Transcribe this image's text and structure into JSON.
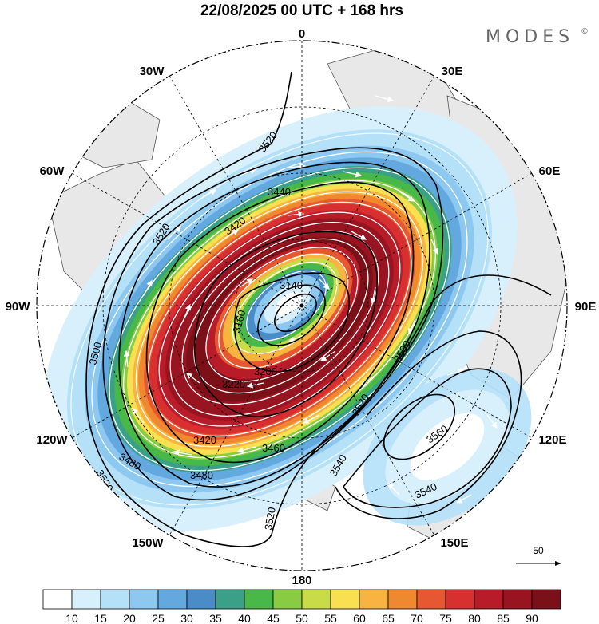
{
  "title": "22/08/2025  00 UTC  + 168 hrs",
  "brand": "MODES",
  "brand_mark": "©",
  "longitude_labels": [
    {
      "id": "0",
      "label": "0"
    },
    {
      "id": "30e",
      "label": "30E"
    },
    {
      "id": "60e",
      "label": "60E"
    },
    {
      "id": "90e",
      "label": "90E"
    },
    {
      "id": "120e",
      "label": "120E"
    },
    {
      "id": "150e",
      "label": "150E"
    },
    {
      "id": "180",
      "label": "180"
    },
    {
      "id": "150w",
      "label": "150W"
    },
    {
      "id": "120w",
      "label": "120W"
    },
    {
      "id": "90w",
      "label": "90W"
    },
    {
      "id": "60w",
      "label": "60W"
    },
    {
      "id": "30w",
      "label": "30W"
    }
  ],
  "contour_labels": [
    {
      "id": "c1",
      "label": "3520"
    },
    {
      "id": "c2",
      "label": "3520"
    },
    {
      "id": "c3",
      "label": "3520"
    },
    {
      "id": "c4",
      "label": "3520"
    },
    {
      "id": "c5",
      "label": "3500"
    },
    {
      "id": "c6",
      "label": "3480"
    },
    {
      "id": "c7",
      "label": "3480"
    },
    {
      "id": "c8",
      "label": "3420"
    },
    {
      "id": "c9",
      "label": "3440"
    },
    {
      "id": "c10",
      "label": "3420"
    },
    {
      "id": "c11",
      "label": "3140"
    },
    {
      "id": "c12",
      "label": "3160"
    },
    {
      "id": "c13",
      "label": "3200"
    },
    {
      "id": "c14",
      "label": "3220"
    },
    {
      "id": "c15",
      "label": "3460"
    },
    {
      "id": "c16",
      "label": "3520"
    },
    {
      "id": "c17",
      "label": "3560"
    },
    {
      "id": "c18",
      "label": "3540"
    },
    {
      "id": "c19",
      "label": "3540"
    },
    {
      "id": "c20",
      "label": "3500"
    }
  ],
  "colorbar": {
    "levels": [
      "10",
      "15",
      "20",
      "25",
      "30",
      "35",
      "40",
      "45",
      "50",
      "55",
      "60",
      "65",
      "70",
      "75",
      "80",
      "85",
      "90"
    ],
    "colors": [
      "#ffffff",
      "#d8f0fc",
      "#b4e0f8",
      "#8cc8f0",
      "#64a8e0",
      "#4a8cc8",
      "#3aa088",
      "#48b848",
      "#88cc44",
      "#c8dc48",
      "#f8e050",
      "#f8b440",
      "#f08830",
      "#e85830",
      "#d83030",
      "#b81c28",
      "#981420",
      "#7c1018"
    ]
  },
  "reference_vector": {
    "label": "50"
  },
  "colors": {
    "land": "#e8e8e8",
    "coast": "#555555",
    "contour": "#000000",
    "streamline": "#ffffff"
  }
}
